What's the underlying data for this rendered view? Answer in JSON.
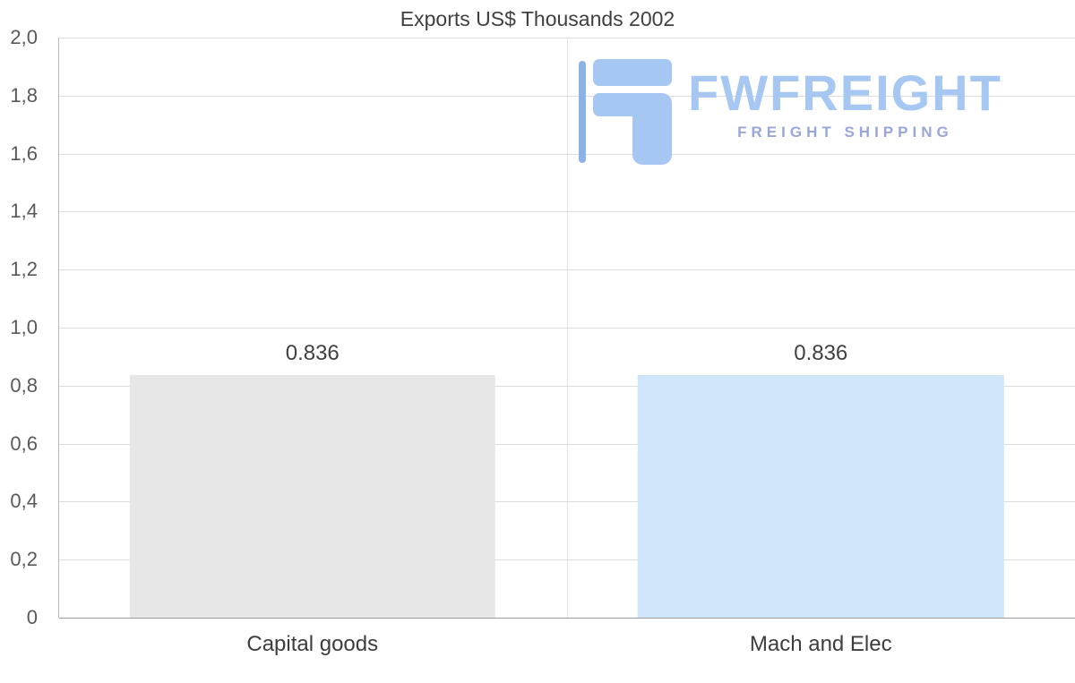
{
  "chart_data": {
    "type": "bar",
    "title": "Exports US$ Thousands 2002",
    "categories": [
      "Capital goods",
      "Mach and Elec"
    ],
    "values": [
      0.836,
      0.836
    ],
    "value_labels": [
      "0.836",
      "0.836"
    ],
    "bar_colors": [
      "#e7e7e7",
      "#cfe5f9"
    ],
    "ylim": [
      0,
      2
    ],
    "ytick_step": 0.2,
    "ytick_labels": [
      "2,0",
      "1,8",
      "1,6",
      "1,4",
      "1,2",
      "1,0",
      "0,8",
      "0,6",
      "0,4",
      "0,2",
      "0"
    ],
    "grid": true,
    "legend": "none",
    "xlabel": "",
    "ylabel": ""
  },
  "logo": {
    "brand": "FWFREIGHT",
    "tagline": "FREIGHT SHIPPING",
    "brand_color": "#a6c7f2",
    "tagline_color": "#9aa6da"
  }
}
